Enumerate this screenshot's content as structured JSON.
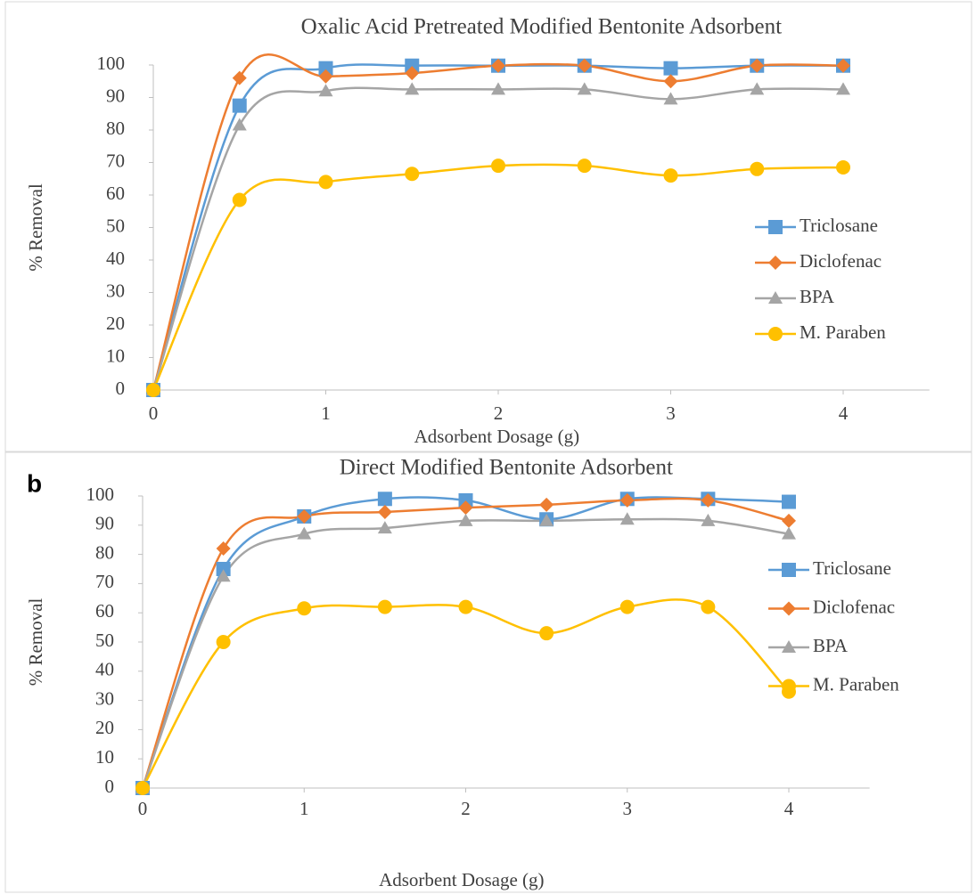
{
  "chart_data": [
    {
      "type": "line",
      "title": "Oxalic Acid Pretreated Modified Bentonite Adsorbent",
      "x_label": "Adsorbent Dosage (g)",
      "y_label": "% Removal",
      "x": [
        0,
        0.5,
        1,
        1.5,
        2,
        2.5,
        3,
        3.5,
        4
      ],
      "xlim": [
        0,
        4.5
      ],
      "xticks": [
        0,
        1,
        2,
        3,
        4
      ],
      "ylim": [
        0,
        100
      ],
      "yticks": [
        0,
        10,
        20,
        30,
        40,
        50,
        60,
        70,
        80,
        90,
        100
      ],
      "legend": "right",
      "series": [
        {
          "name": "Triclosane",
          "color": "#5b9bd5",
          "values": [
            0,
            87.5,
            99,
            99.8,
            99.8,
            99.8,
            99,
            99.8,
            99.8
          ]
        },
        {
          "name": "Diclofenac",
          "color": "#ed7d31",
          "values": [
            0,
            96,
            96.5,
            97.5,
            99.8,
            99.8,
            95,
            99.8,
            99.8
          ]
        },
        {
          "name": "BPA",
          "color": "#a5a5a5",
          "values": [
            0,
            81.5,
            92,
            92.5,
            92.5,
            92.5,
            89.5,
            92.5,
            92.5
          ]
        },
        {
          "name": "M. Paraben",
          "color": "#ffc000",
          "values": [
            0,
            58.5,
            64,
            66.5,
            69,
            69,
            66,
            68,
            68.5
          ]
        }
      ]
    },
    {
      "type": "line",
      "panel_label": "b",
      "title": "Direct Modified Bentonite Adsorbent",
      "x_label": "Adsorbent Dosage (g)",
      "y_label": "% Removal",
      "x": [
        0,
        0.5,
        1,
        1.5,
        2,
        2.5,
        3,
        3.5,
        4
      ],
      "xlim": [
        0,
        4.5
      ],
      "xticks": [
        0,
        1,
        2,
        3,
        4
      ],
      "ylim": [
        0,
        100
      ],
      "yticks": [
        0,
        10,
        20,
        30,
        40,
        50,
        60,
        70,
        80,
        90,
        100
      ],
      "legend": "right",
      "series": [
        {
          "name": "Triclosane",
          "color": "#5b9bd5",
          "values": [
            0,
            75,
            93,
            99,
            98.5,
            92,
            99,
            99,
            98
          ]
        },
        {
          "name": "Diclofenac",
          "color": "#ed7d31",
          "values": [
            0,
            82,
            93,
            94.5,
            96,
            97,
            98.5,
            98.5,
            91.5
          ]
        },
        {
          "name": "BPA",
          "color": "#a5a5a5",
          "values": [
            0,
            72.5,
            87,
            89,
            91.5,
            91.5,
            92,
            91.5,
            87
          ]
        },
        {
          "name": "M. Paraben",
          "color": "#ffc000",
          "values": [
            0,
            50,
            61.5,
            62,
            62,
            53,
            62,
            62,
            33
          ]
        }
      ]
    }
  ]
}
